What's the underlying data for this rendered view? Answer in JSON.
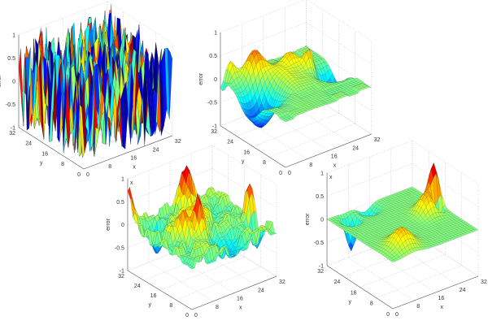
{
  "chart_data": [
    {
      "type": "surface",
      "panel": "top-left",
      "xlabel": "x",
      "ylabel": "y",
      "zlabel": "error",
      "extra_label": "",
      "xlim": [
        0,
        32
      ],
      "ylim": [
        0,
        32
      ],
      "zlim": [
        -1,
        1
      ],
      "xticks": [
        "0",
        "8",
        "16",
        "24",
        "32"
      ],
      "yticks": [
        "0",
        "8",
        "16",
        "24",
        "32"
      ],
      "zticks": [
        "-1",
        "-0.5",
        "0",
        "0.5",
        "1"
      ],
      "grid": true,
      "colormap": "jet",
      "noise_amplitude": 1.0,
      "noise_cell": 2,
      "peaks": []
    },
    {
      "type": "surface",
      "panel": "top-right",
      "xlabel": "x",
      "ylabel": "y",
      "zlabel": "error",
      "extra_label": "",
      "xlim": [
        0,
        32
      ],
      "ylim": [
        0,
        32
      ],
      "zlim": [
        -1,
        1
      ],
      "xticks": [
        "0",
        "8",
        "16",
        "24",
        "32"
      ],
      "yticks": [
        "0",
        "8",
        "16",
        "24",
        "32"
      ],
      "zticks": [
        "-1",
        "-0.5",
        "0",
        "0.5",
        "1"
      ],
      "grid": true,
      "colormap": "jet",
      "noise_amplitude": 0.03,
      "noise_cell": 4,
      "peaks": [
        {
          "x": 4,
          "y": 18,
          "z": -0.75,
          "w": 4
        },
        {
          "x": 9,
          "y": 27,
          "z": 0.55,
          "w": 2.5
        },
        {
          "x": 3,
          "y": 31,
          "z": 0.35,
          "w": 1.5
        },
        {
          "x": 20,
          "y": 24,
          "z": 0.3,
          "w": 2
        },
        {
          "x": 24,
          "y": 20,
          "z": 0.45,
          "w": 1.5
        },
        {
          "x": 29,
          "y": 16,
          "z": -0.6,
          "w": 3
        },
        {
          "x": 14,
          "y": 20,
          "z": 0.2,
          "w": 5
        },
        {
          "x": 0,
          "y": 31,
          "z": -0.3,
          "w": 1.5
        }
      ]
    },
    {
      "type": "surface",
      "panel": "bottom-left",
      "xlabel": "x",
      "ylabel": "y",
      "zlabel": "error",
      "extra_label": "x",
      "xlim": [
        0,
        32
      ],
      "ylim": [
        0,
        32
      ],
      "zlim": [
        -1,
        1
      ],
      "xticks": [
        "0",
        "8",
        "16",
        "24",
        "32"
      ],
      "yticks": [
        "0",
        "8",
        "16",
        "24",
        "32"
      ],
      "zticks": [
        "-1",
        "-0.5",
        "0",
        "0.5",
        "1"
      ],
      "grid": true,
      "colormap": "jet",
      "noise_amplitude": 0.15,
      "noise_cell": 2,
      "peaks": [
        {
          "x": 0,
          "y": 31,
          "z": 0.9,
          "w": 1.2
        },
        {
          "x": 8,
          "y": 16,
          "z": 0.6,
          "w": 2
        },
        {
          "x": 12,
          "y": 13,
          "z": 0.75,
          "w": 1.5
        },
        {
          "x": 20,
          "y": 29,
          "z": 0.85,
          "w": 1.8
        },
        {
          "x": 31,
          "y": 12,
          "z": 0.6,
          "w": 1.5
        },
        {
          "x": 30,
          "y": 8,
          "z": -0.6,
          "w": 1.5
        },
        {
          "x": 6,
          "y": 26,
          "z": -0.5,
          "w": 2
        },
        {
          "x": 18,
          "y": 6,
          "z": -0.4,
          "w": 3
        },
        {
          "x": 16,
          "y": 20,
          "z": 0.4,
          "w": 3
        }
      ]
    },
    {
      "type": "surface",
      "panel": "bottom-right",
      "xlabel": "x",
      "ylabel": "y",
      "zlabel": "error",
      "extra_label": "x",
      "xlim": [
        0,
        32
      ],
      "ylim": [
        0,
        32
      ],
      "zlim": [
        -1,
        1
      ],
      "xticks": [
        "0",
        "8",
        "16",
        "24",
        "32"
      ],
      "yticks": [
        "0",
        "8",
        "16",
        "24",
        "32"
      ],
      "zticks": [
        "-1",
        "-0.5",
        "0",
        "0.5",
        "1"
      ],
      "grid": true,
      "colormap": "jet",
      "noise_amplitude": 0.0,
      "noise_cell": 4,
      "peaks": [
        {
          "x": 6,
          "y": 28,
          "z": -0.7,
          "w": 1.5
        },
        {
          "x": 14,
          "y": 30,
          "z": -0.25,
          "w": 2
        },
        {
          "x": 26,
          "y": 17,
          "z": 0.45,
          "w": 2.5
        },
        {
          "x": 30,
          "y": 19,
          "z": 0.85,
          "w": 1.5
        },
        {
          "x": 29,
          "y": 16,
          "z": -0.7,
          "w": 1
        },
        {
          "x": 8,
          "y": 6,
          "z": 0.4,
          "w": 3
        }
      ]
    }
  ]
}
